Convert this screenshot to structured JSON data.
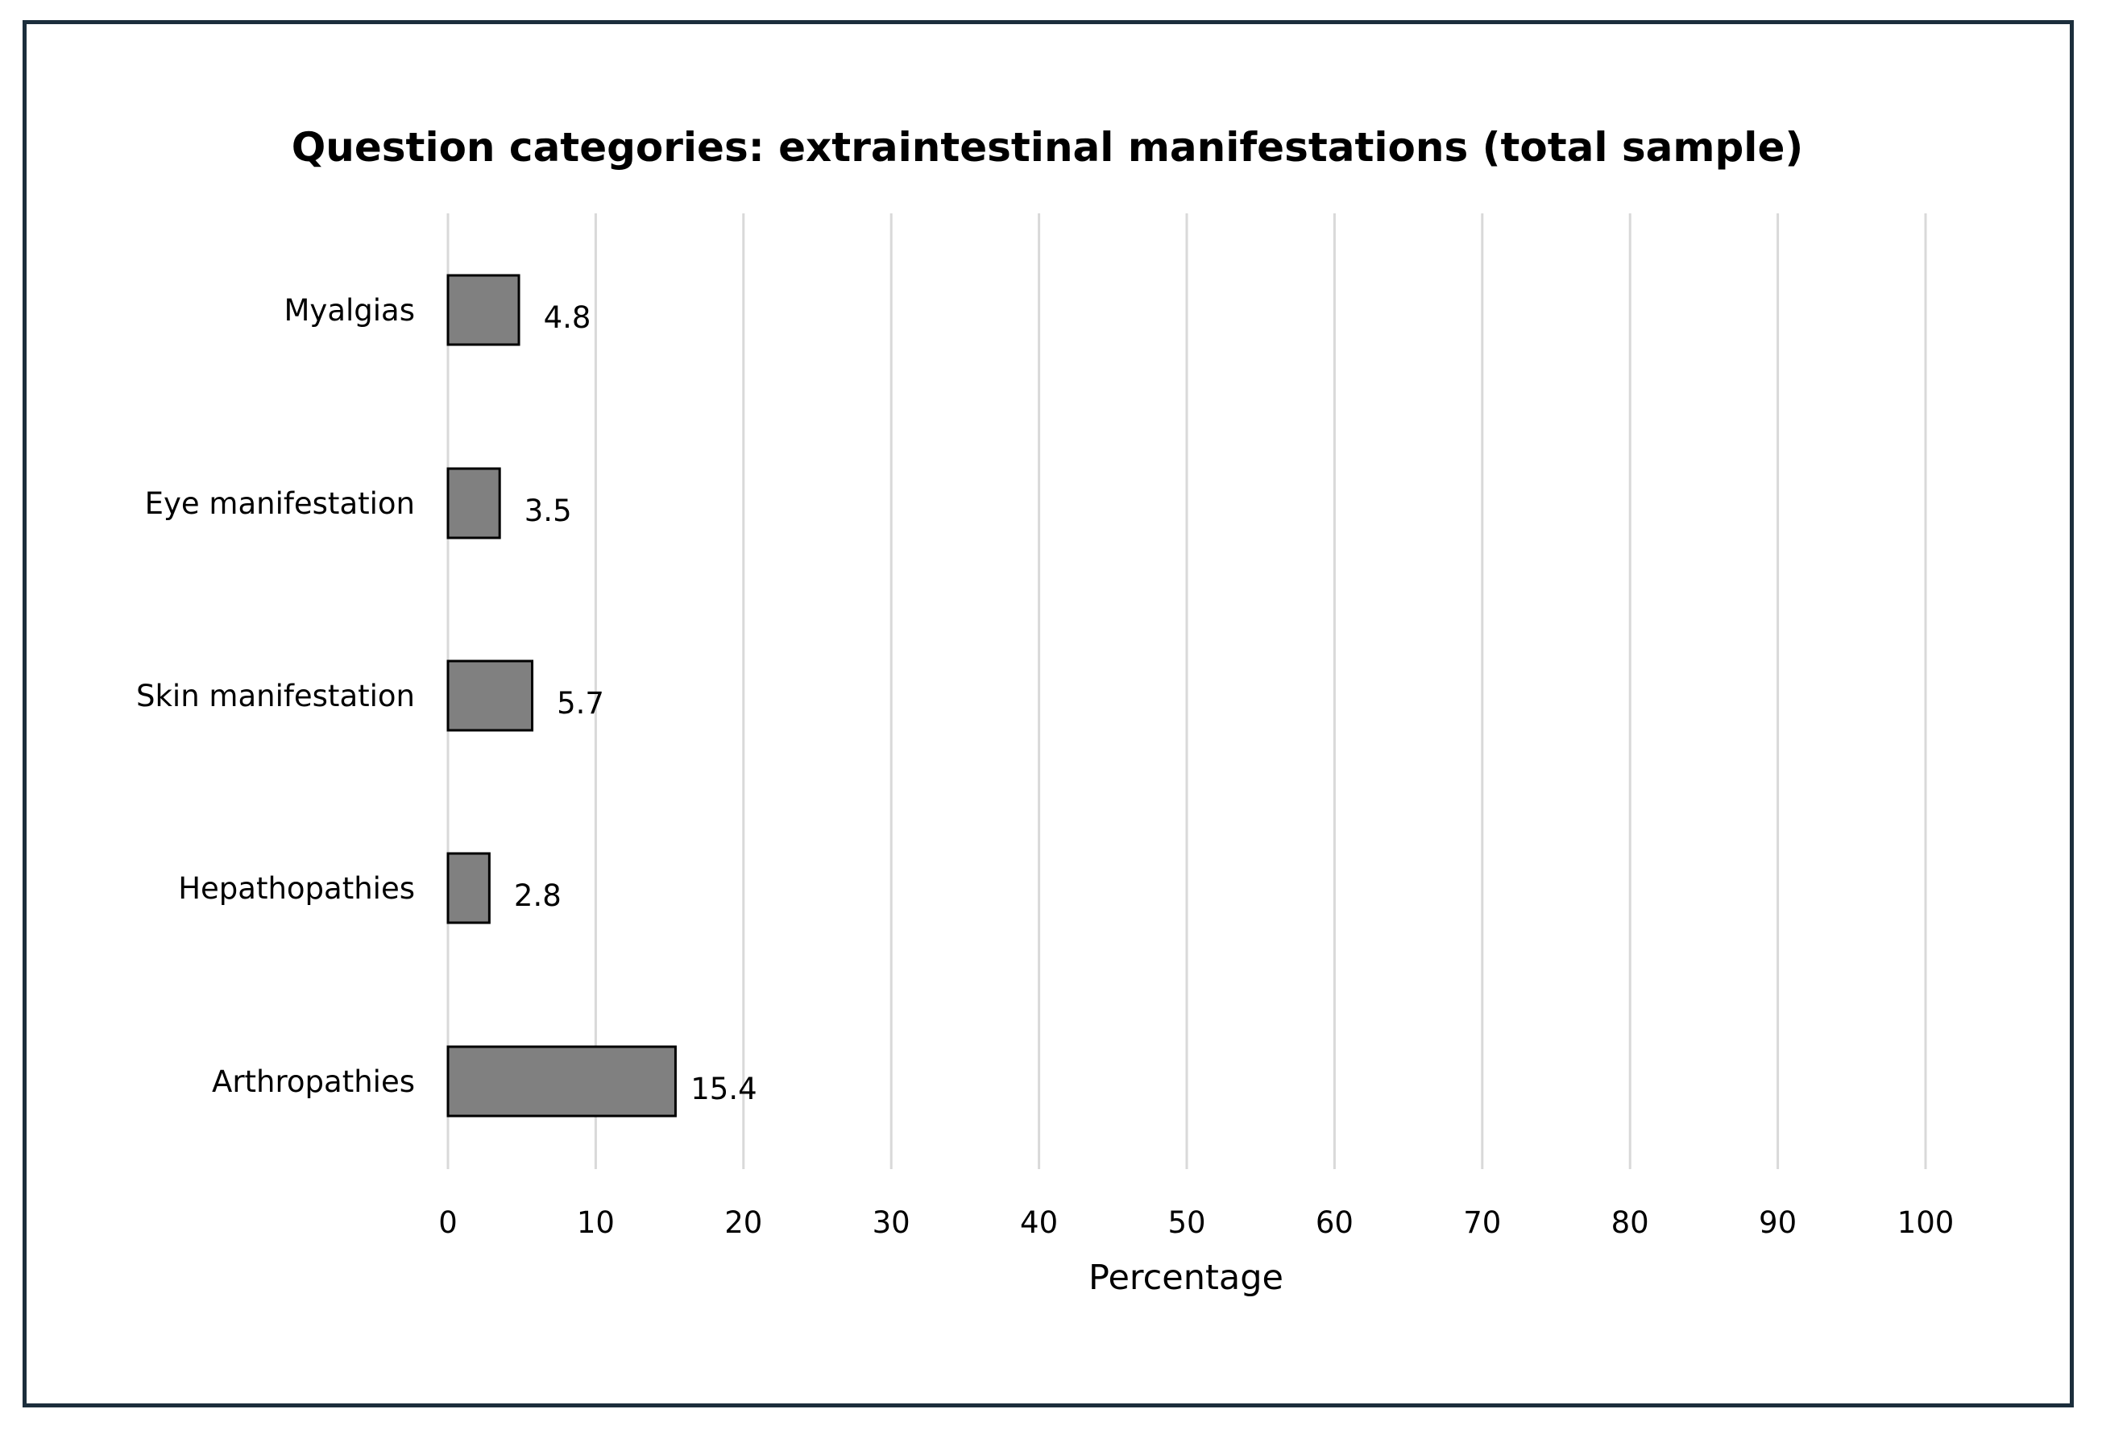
{
  "chart_data": {
    "type": "bar",
    "orientation": "horizontal",
    "title": "Question categories: extraintestinal manifestations (total sample)",
    "xlabel": "Percentage",
    "ylabel": "",
    "categories": [
      "Myalgias",
      "Eye manifestation",
      "Skin manifestation",
      "Hepathopathies",
      "Arthropathies"
    ],
    "values": [
      4.8,
      3.5,
      5.7,
      2.8,
      15.4
    ],
    "value_labels": [
      "4.8",
      "3.5",
      "5.7",
      "2.8",
      "15.4"
    ],
    "xlim": [
      0,
      100
    ],
    "xticks": [
      0,
      10,
      20,
      30,
      40,
      50,
      60,
      70,
      80,
      90,
      100
    ],
    "xtick_labels": [
      "0",
      "10",
      "20",
      "30",
      "40",
      "50",
      "60",
      "70",
      "80",
      "90",
      "100"
    ],
    "grid": true,
    "legend": "none",
    "colors": {
      "bar_fill": "#808080",
      "bar_stroke": "#000000",
      "gridline": "#d9d9d9",
      "frame": "#1c2e3c"
    }
  }
}
